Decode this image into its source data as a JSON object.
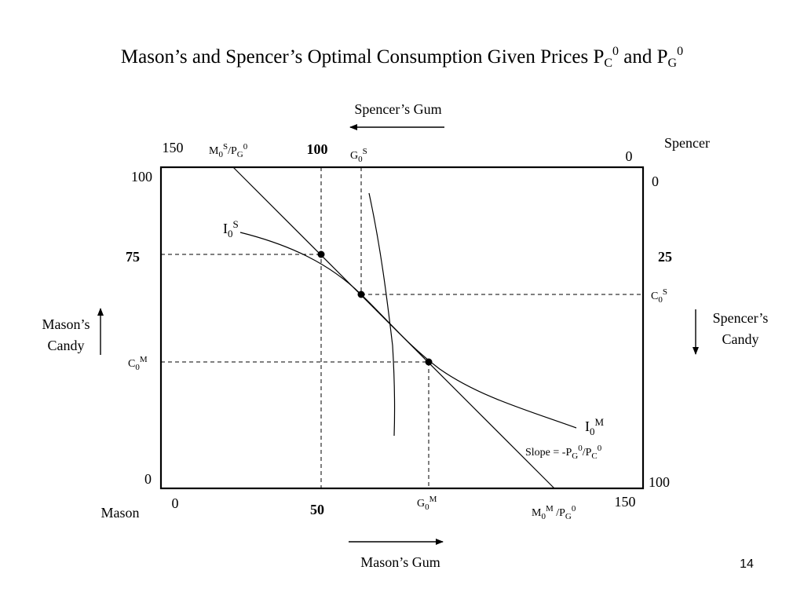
{
  "title": {
    "text_a": "Mason’s and Spencer’s Optimal Consumption Given Prices P",
    "sub_c": "C",
    "sup_c": "0",
    "mid": " and P",
    "sub_g": "G",
    "sup_g": "0"
  },
  "page_number": "14",
  "axes": {
    "spencer_gum": "Spencer’s Gum",
    "mason_gum": "Mason’s Gum",
    "spencer": "Spencer",
    "mason": "Mason",
    "mason_candy_line1": "Mason’s",
    "mason_candy_line2": "Candy",
    "spencer_candy_line1": "Spencer’s",
    "spencer_candy_line2": "Candy"
  },
  "ticks": {
    "top_150": "150",
    "top_100": "100",
    "top_0": "0",
    "left_100": "100",
    "left_75": "75",
    "left_0": "0",
    "right_0": "0",
    "right_25": "25",
    "right_100": "100",
    "bottom_0": "0",
    "bottom_50": "50",
    "bottom_150": "150"
  },
  "labels": {
    "ms_over_pg": {
      "a": "M",
      "a_sub": "0",
      "a_sup": "S",
      "b": "/P",
      "b_sub": "G",
      "b_sup": "0"
    },
    "g0s": {
      "a": "G",
      "a_sub": "0",
      "a_sup": "S"
    },
    "i0s": {
      "a": "I",
      "a_sub": "0",
      "a_sup": "S"
    },
    "c0s": {
      "a": "C",
      "a_sub": "0",
      "a_sup": "S"
    },
    "c0m": {
      "a": "C",
      "a_sub": "0",
      "a_sup": "M"
    },
    "i0m": {
      "a": "I",
      "a_sub": "0",
      "a_sup": "M"
    },
    "slope": {
      "a": "Slope = -P",
      "a_sub": "G",
      "a_sup": "0",
      "b": "/P",
      "b_sub": "C",
      "b_sup": "0"
    },
    "g0m": {
      "a": "G",
      "a_sub": "0",
      "a_sup": "M"
    },
    "mm_over_pg": {
      "a": "M",
      "a_sub": "0",
      "a_sup": "M",
      "b": " /P",
      "b_sub": "G",
      "b_sup": "0"
    }
  },
  "colors": {
    "ink": "#000000",
    "background": "#ffffff"
  }
}
